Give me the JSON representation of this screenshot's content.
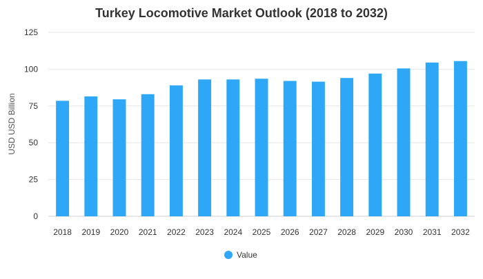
{
  "chart_data": {
    "type": "bar",
    "title": "Turkey Locomotive Market Outlook (2018 to 2032)",
    "xlabel": "",
    "ylabel": "USD USD Billion",
    "categories": [
      "2018",
      "2019",
      "2020",
      "2021",
      "2022",
      "2023",
      "2024",
      "2025",
      "2026",
      "2027",
      "2028",
      "2029",
      "2030",
      "2031",
      "2032"
    ],
    "series": [
      {
        "name": "Value",
        "values": [
          78.5,
          81.5,
          79.5,
          83,
          89,
          93,
          93,
          93.5,
          92,
          91.5,
          94,
          97,
          100.5,
          104.5,
          105.5
        ]
      }
    ],
    "ylim": [
      0,
      125
    ],
    "yticks": [
      0,
      25,
      50,
      75,
      100,
      125
    ],
    "grid": true,
    "legend_position": "bottom",
    "colors": {
      "bar": "#2ea8f6",
      "grid": "#e6e6e6"
    }
  }
}
